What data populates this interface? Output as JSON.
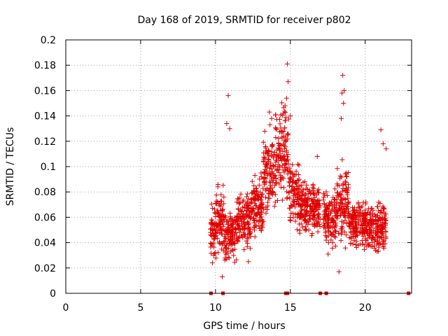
{
  "chart_data": {
    "type": "scatter",
    "title": "Day 168 of 2019, SRMTID for receiver p802",
    "xlabel": "GPS time / hours",
    "ylabel": "SRMTID / TECUs",
    "xlim": [
      0,
      23.1
    ],
    "ylim": [
      0,
      0.2
    ],
    "xticks": [
      0,
      5,
      10,
      15,
      20
    ],
    "yticks": [
      0,
      0.02,
      0.04,
      0.06,
      0.08,
      0.1,
      0.12,
      0.14,
      0.16,
      0.18,
      0.2
    ],
    "xtick_labels": [
      "0",
      "5",
      "10",
      "15",
      "20"
    ],
    "ytick_labels": [
      "0",
      "0.02",
      "0.04",
      "0.06",
      "0.08",
      "0.1",
      "0.12",
      "0.14",
      "0.16",
      "0.18",
      "0.2"
    ],
    "grid": true,
    "marker": "+",
    "color": "#e00000",
    "note": "Dense scatter of ~1500 points; values summarised as per-segment envelopes (x range in hours, y mean/spread in TECU). Points shown are an estimated reconstruction.",
    "segments": [
      {
        "x": [
          9.65,
          10.0
        ],
        "mean": 0.05,
        "spread": 0.012
      },
      {
        "x": [
          10.0,
          10.6
        ],
        "mean": 0.058,
        "spread": 0.016
      },
      {
        "x": [
          10.6,
          11.4
        ],
        "mean": 0.045,
        "spread": 0.012
      },
      {
        "x": [
          11.4,
          12.4
        ],
        "mean": 0.058,
        "spread": 0.014
      },
      {
        "x": [
          12.4,
          13.2
        ],
        "mean": 0.07,
        "spread": 0.014
      },
      {
        "x": [
          13.2,
          14.0
        ],
        "mean": 0.095,
        "spread": 0.02
      },
      {
        "x": [
          14.0,
          14.9
        ],
        "mean": 0.11,
        "spread": 0.024
      },
      {
        "x": [
          14.9,
          15.6
        ],
        "mean": 0.08,
        "spread": 0.016
      },
      {
        "x": [
          15.6,
          17.0
        ],
        "mean": 0.068,
        "spread": 0.012
      },
      {
        "x": [
          17.2,
          18.1
        ],
        "mean": 0.06,
        "spread": 0.014
      },
      {
        "x": [
          18.1,
          18.9
        ],
        "mean": 0.07,
        "spread": 0.018
      },
      {
        "x": [
          18.9,
          20.0
        ],
        "mean": 0.055,
        "spread": 0.013
      },
      {
        "x": [
          20.0,
          21.4
        ],
        "mean": 0.052,
        "spread": 0.013
      }
    ],
    "outliers": [
      {
        "x": 10.85,
        "y": 0.156
      },
      {
        "x": 10.75,
        "y": 0.134
      },
      {
        "x": 10.95,
        "y": 0.13
      },
      {
        "x": 14.8,
        "y": 0.181
      },
      {
        "x": 14.85,
        "y": 0.167
      },
      {
        "x": 14.75,
        "y": 0.154
      },
      {
        "x": 14.65,
        "y": 0.148
      },
      {
        "x": 14.55,
        "y": 0.142
      },
      {
        "x": 15.0,
        "y": 0.14
      },
      {
        "x": 18.5,
        "y": 0.172
      },
      {
        "x": 18.6,
        "y": 0.16
      },
      {
        "x": 18.45,
        "y": 0.158
      },
      {
        "x": 18.55,
        "y": 0.15
      },
      {
        "x": 18.4,
        "y": 0.138
      },
      {
        "x": 21.05,
        "y": 0.129
      },
      {
        "x": 21.4,
        "y": 0.114
      },
      {
        "x": 21.2,
        "y": 0.118
      },
      {
        "x": 13.6,
        "y": 0.143
      },
      {
        "x": 13.75,
        "y": 0.138
      },
      {
        "x": 16.8,
        "y": 0.108
      },
      {
        "x": 10.45,
        "y": 0.013
      },
      {
        "x": 18.25,
        "y": 0.017
      },
      {
        "x": 9.8,
        "y": 0.024
      },
      {
        "x": 12.2,
        "y": 0.025
      }
    ],
    "zero_markers": [
      9.7,
      10.5,
      14.7,
      14.8,
      17.0,
      17.4,
      22.9
    ]
  }
}
